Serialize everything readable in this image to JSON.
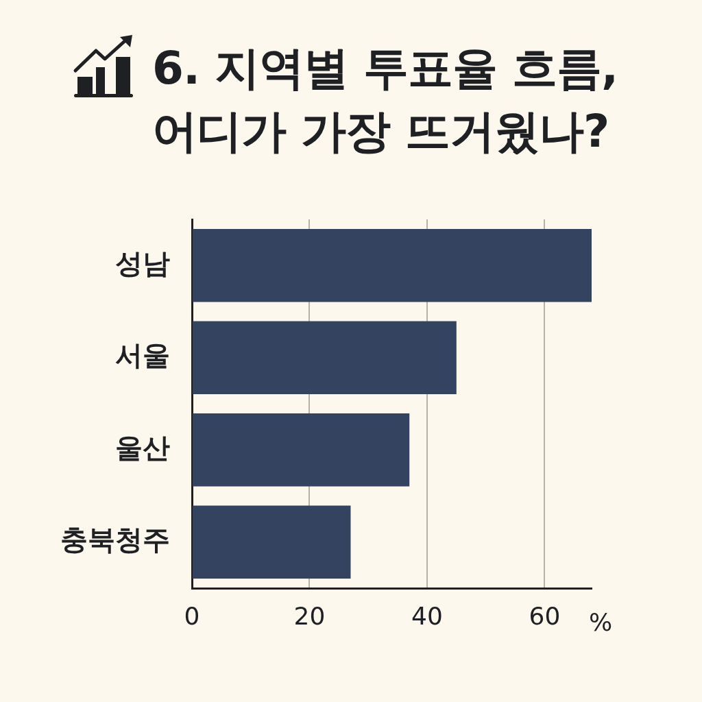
{
  "chart_data": {
    "type": "bar",
    "orientation": "horizontal",
    "title": "6. 지역별 투표율 흐름, 어디가 가장 뜨거웠나?",
    "categories": [
      "성남",
      "서울",
      "울산",
      "충북청주"
    ],
    "values": [
      68,
      45,
      37,
      27
    ],
    "color": "#334360",
    "xlabel": "%",
    "xlim": [
      0,
      68
    ],
    "xticks": [
      0,
      20,
      40,
      60
    ],
    "grid": "x"
  }
}
